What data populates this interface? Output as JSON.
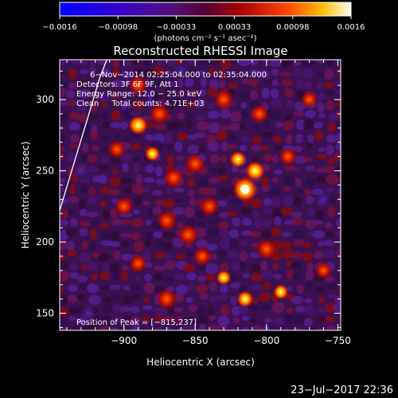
{
  "chart_data": {
    "type": "heatmap",
    "title": "Reconstructed RHESSI Image",
    "xlabel": "Heliocentric X (arcsec)",
    "ylabel": "Heliocentric Y (arcsec)",
    "xlim": [
      -945,
      -748
    ],
    "ylim": [
      138,
      328
    ],
    "x_ticks": [
      -900,
      -850,
      -800,
      -750
    ],
    "x_tick_labels": [
      "−900",
      "−850",
      "−800",
      "−750"
    ],
    "y_ticks": [
      150,
      200,
      250,
      300
    ],
    "y_tick_labels": [
      "150",
      "200",
      "250",
      "300"
    ],
    "colorbar": {
      "range": [
        -0.0016,
        0.0016
      ],
      "tick_labels": [
        "−0.0016",
        "−0.00098",
        "−0.00033",
        "0.00033",
        "0.00098",
        "0.0016"
      ],
      "label": "(photons cm⁻² s⁻¹ asec⁻²)"
    },
    "annotations": [
      "6−Nov−2014 02:25:04.000 to 02:35:04.000",
      "Detectors: 3F 6F 9F, Att 1",
      "Energy Range: 12.0 − 25.0 keV",
      "Clean     Total counts: 4.71E+03"
    ],
    "peak_label": "Position of Peak = [−815,237]",
    "peak": [
      -815,
      237
    ],
    "hotspots": [
      {
        "x": -815,
        "y": 237,
        "value": 0.0016
      },
      {
        "x": -808,
        "y": 250,
        "value": 0.0012
      },
      {
        "x": -820,
        "y": 258,
        "value": 0.001
      },
      {
        "x": -890,
        "y": 282,
        "value": 0.0012
      },
      {
        "x": -880,
        "y": 262,
        "value": 0.0009
      },
      {
        "x": -875,
        "y": 290,
        "value": 0.0008
      },
      {
        "x": -865,
        "y": 245,
        "value": 0.0008
      },
      {
        "x": -850,
        "y": 255,
        "value": 0.0007
      },
      {
        "x": -855,
        "y": 205,
        "value": 0.0008
      },
      {
        "x": -870,
        "y": 215,
        "value": 0.0007
      },
      {
        "x": -840,
        "y": 225,
        "value": 0.0007
      },
      {
        "x": -800,
        "y": 195,
        "value": 0.0008
      },
      {
        "x": -830,
        "y": 175,
        "value": 0.0009
      },
      {
        "x": -815,
        "y": 160,
        "value": 0.001
      },
      {
        "x": -790,
        "y": 165,
        "value": 0.0009
      },
      {
        "x": -870,
        "y": 160,
        "value": 0.0008
      },
      {
        "x": -900,
        "y": 225,
        "value": 0.0006
      },
      {
        "x": -905,
        "y": 265,
        "value": 0.0005
      },
      {
        "x": -890,
        "y": 310,
        "value": 0.0006
      },
      {
        "x": -830,
        "y": 300,
        "value": 0.0007
      },
      {
        "x": -805,
        "y": 290,
        "value": 0.0006
      },
      {
        "x": -785,
        "y": 260,
        "value": 0.0005
      },
      {
        "x": -770,
        "y": 300,
        "value": 0.0004
      },
      {
        "x": -845,
        "y": 190,
        "value": 0.0006
      },
      {
        "x": -890,
        "y": 185,
        "value": 0.0005
      },
      {
        "x": -760,
        "y": 180,
        "value": 0.0004
      },
      {
        "x": -925,
        "y": 150,
        "value": -0.0004
      },
      {
        "x": -930,
        "y": 250,
        "value": -0.0005
      },
      {
        "x": -760,
        "y": 230,
        "value": -0.0004
      },
      {
        "x": -860,
        "y": 320,
        "value": -0.0003
      }
    ],
    "limb_points": [
      [
        -945,
        222
      ],
      [
        -936,
        252
      ],
      [
        -926,
        285
      ],
      [
        -917,
        315
      ],
      [
        -912,
        328
      ]
    ]
  },
  "footer": {
    "timestamp": "23−Jul−2017 22:36"
  }
}
